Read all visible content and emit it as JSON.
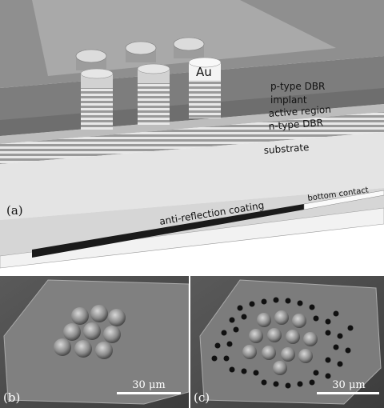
{
  "panel_a": {
    "label": "(a)",
    "layers": {
      "metal": "Au",
      "p_dbr": "p-type DBR",
      "implant": "implant",
      "active": "active region",
      "n_dbr": "n-type DBR",
      "substrate": "substrate",
      "ar": "anti-reflection coating",
      "contact": "bottom contact"
    }
  },
  "panel_b": {
    "label": "(b)",
    "scale": "30 μm"
  },
  "panel_c": {
    "label": "(c)",
    "scale": "30 μm"
  }
}
